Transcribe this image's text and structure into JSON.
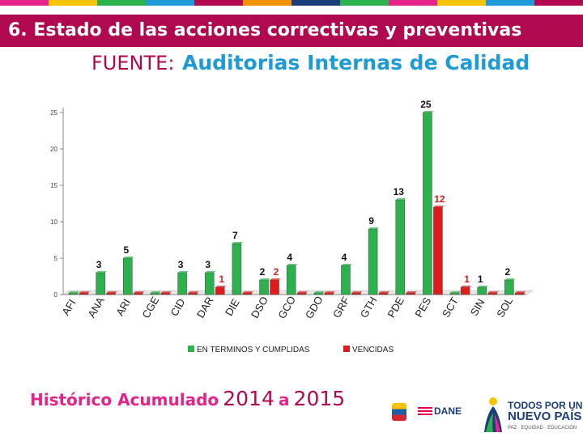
{
  "slide": {
    "title": "6. Estado de las acciones correctivas y preventivas",
    "source_label": "FUENTE:",
    "source_value": "Auditorias Internas de Calidad",
    "historic_label": "Histórico Acumulado",
    "historic_year_start": "2014",
    "historic_connector": "a",
    "historic_year_end": "2015"
  },
  "logos": {
    "dane": "DANE",
    "gov_line1": "TODOS POR UN",
    "gov_line2": "NUEVO PAÍS",
    "gov_line3": "PAZ · EQUIDAD · EDUCACIÓN"
  },
  "colors": {
    "title_bar": "#b0094f",
    "source_label": "#b0094f",
    "source_value": "#1e9bd7",
    "historic_label": "#e6238a",
    "series_completed": "#2bb24c",
    "series_overdue": "#e01b1b",
    "top_stripe": [
      "#e6238a",
      "#f6c400",
      "#2bb24c",
      "#1e9bd7",
      "#b0094f",
      "#f39200",
      "#1b3d7a",
      "#2bb24c",
      "#e6238a",
      "#f6c400",
      "#1e9bd7",
      "#b0094f"
    ]
  },
  "chart_data": {
    "type": "bar",
    "title": "",
    "xlabel": "",
    "ylabel": "",
    "categories": [
      "AFI",
      "ANA",
      "ARI",
      "CGE",
      "CID",
      "DAR",
      "DIE",
      "DSO",
      "GCO",
      "GDO",
      "GRF",
      "GTH",
      "PDE",
      "PES",
      "SCT",
      "SIN",
      "SOL"
    ],
    "series": [
      {
        "name": "EN TERMINOS Y CUMPLIDAS",
        "values": [
          0,
          3,
          5,
          0,
          3,
          3,
          7,
          2,
          4,
          0,
          4,
          9,
          13,
          25,
          0,
          1,
          2
        ]
      },
      {
        "name": "VENCIDAS",
        "values": [
          0,
          0,
          0,
          0,
          0,
          1,
          0,
          2,
          0,
          0,
          0,
          0,
          0,
          12,
          1,
          0,
          0
        ]
      }
    ],
    "data_labels": [
      {
        "series": 0,
        "category": 1,
        "text": "3"
      },
      {
        "series": 0,
        "category": 2,
        "text": "5"
      },
      {
        "series": 0,
        "category": 4,
        "text": "3"
      },
      {
        "series": 0,
        "category": 5,
        "text": "3"
      },
      {
        "series": 1,
        "category": 5,
        "text": "1"
      },
      {
        "series": 0,
        "category": 6,
        "text": "7"
      },
      {
        "series": 0,
        "category": 7,
        "text": "2"
      },
      {
        "series": 1,
        "category": 7,
        "text": "2"
      },
      {
        "series": 0,
        "category": 8,
        "text": "4"
      },
      {
        "series": 0,
        "category": 10,
        "text": "4"
      },
      {
        "series": 0,
        "category": 11,
        "text": "9"
      },
      {
        "series": 0,
        "category": 12,
        "text": "13"
      },
      {
        "series": 0,
        "category": 13,
        "text": "25"
      },
      {
        "series": 1,
        "category": 13,
        "text": "12"
      },
      {
        "series": 1,
        "category": 14,
        "text": "1"
      },
      {
        "series": 0,
        "category": 15,
        "text": "1"
      },
      {
        "series": 0,
        "category": 16,
        "text": "2"
      }
    ],
    "y_ticks": [
      0,
      5,
      10,
      15,
      20,
      25
    ],
    "ylim": [
      0,
      25
    ],
    "grid": false,
    "legend_position": "bottom"
  }
}
